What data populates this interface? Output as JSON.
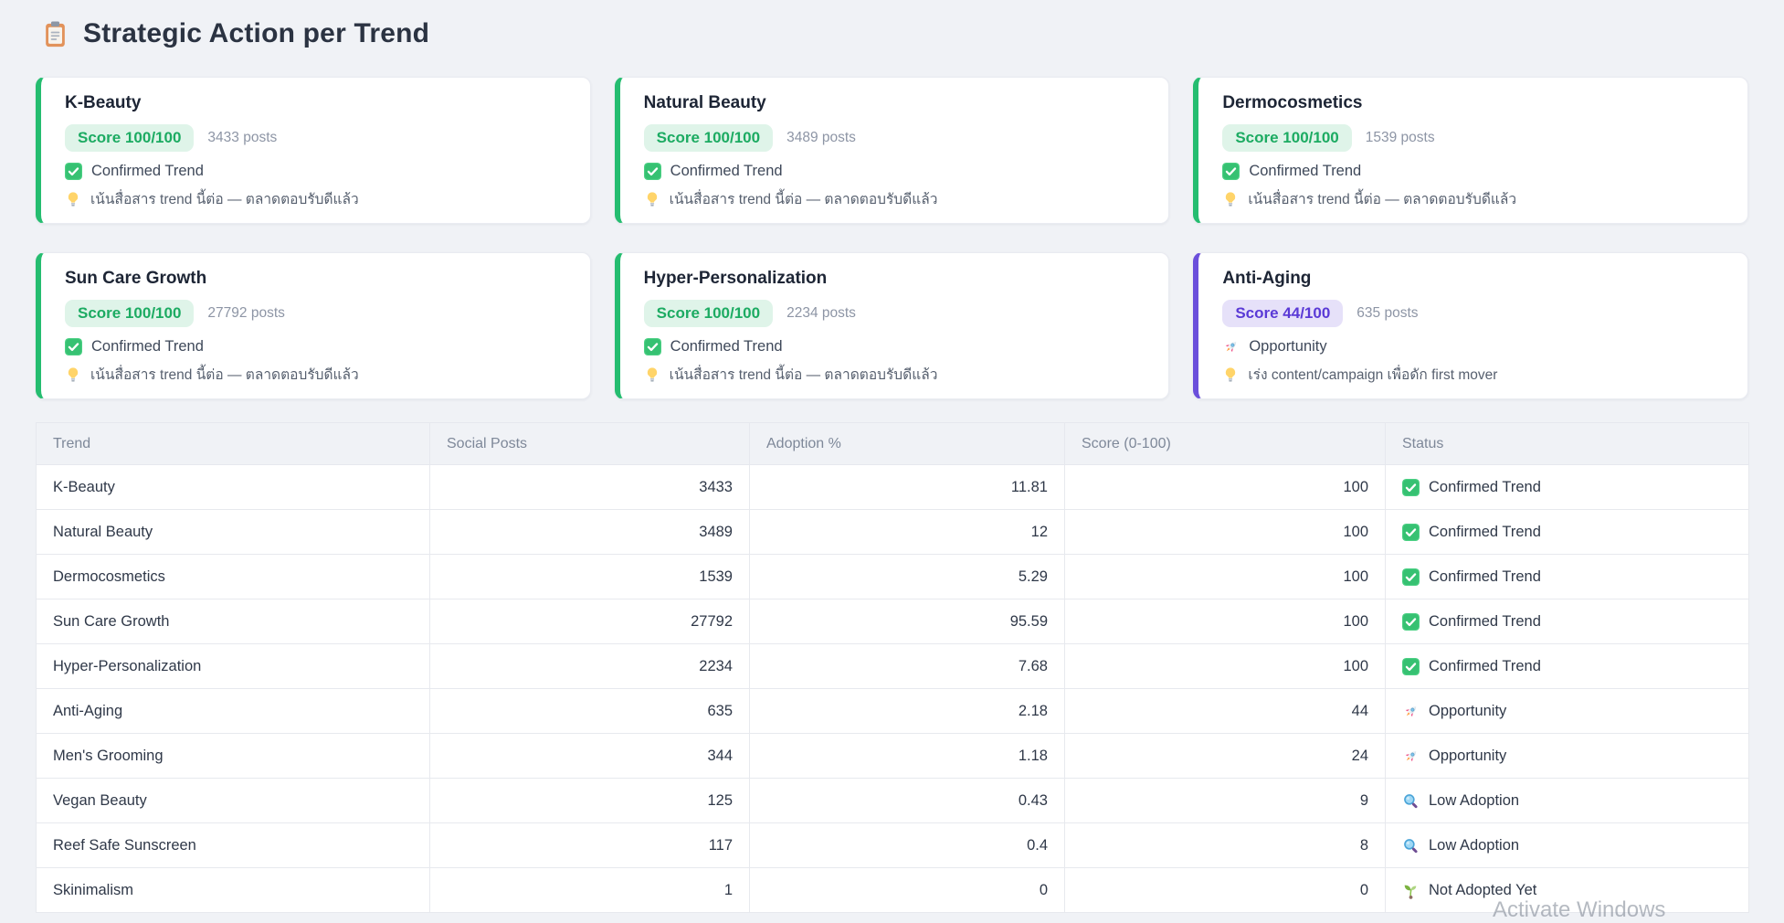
{
  "page": {
    "title": "Strategic Action per Trend",
    "title_icon": "clipboard",
    "watermark": "Activate Windows"
  },
  "colors": {
    "green": {
      "accent": "#25bd70",
      "badge_bg": "#dff4e9",
      "badge_text": "#1cab62"
    },
    "purple": {
      "accent": "#6b4fdb",
      "badge_bg": "#e6e1f9",
      "badge_text": "#5a3ad6"
    }
  },
  "cards": [
    {
      "name": "K-Beauty",
      "score_label": "Score 100/100",
      "posts_label": "3433 posts",
      "status_icon": "check",
      "status_label": "Confirmed Trend",
      "advice_icon": "bulb",
      "advice_label": "เน้นสื่อสาร trend นี้ต่อ — ตลาดตอบรับดีแล้ว",
      "accent": "green"
    },
    {
      "name": "Natural Beauty",
      "score_label": "Score 100/100",
      "posts_label": "3489 posts",
      "status_icon": "check",
      "status_label": "Confirmed Trend",
      "advice_icon": "bulb",
      "advice_label": "เน้นสื่อสาร trend นี้ต่อ — ตลาดตอบรับดีแล้ว",
      "accent": "green"
    },
    {
      "name": "Dermocosmetics",
      "score_label": "Score 100/100",
      "posts_label": "1539 posts",
      "status_icon": "check",
      "status_label": "Confirmed Trend",
      "advice_icon": "bulb",
      "advice_label": "เน้นสื่อสาร trend นี้ต่อ — ตลาดตอบรับดีแล้ว",
      "accent": "green"
    },
    {
      "name": "Sun Care Growth",
      "score_label": "Score 100/100",
      "posts_label": "27792 posts",
      "status_icon": "check",
      "status_label": "Confirmed Trend",
      "advice_icon": "bulb",
      "advice_label": "เน้นสื่อสาร trend นี้ต่อ — ตลาดตอบรับดีแล้ว",
      "accent": "green"
    },
    {
      "name": "Hyper-Personalization",
      "score_label": "Score 100/100",
      "posts_label": "2234 posts",
      "status_icon": "check",
      "status_label": "Confirmed Trend",
      "advice_icon": "bulb",
      "advice_label": "เน้นสื่อสาร trend นี้ต่อ — ตลาดตอบรับดีแล้ว",
      "accent": "green"
    },
    {
      "name": "Anti-Aging",
      "score_label": "Score 44/100",
      "posts_label": "635 posts",
      "status_icon": "rocket",
      "status_label": "Opportunity",
      "advice_icon": "bulb",
      "advice_label": "เร่ง content/campaign เพื่อดัก first mover",
      "accent": "purple"
    }
  ],
  "table": {
    "columns": [
      "Trend",
      "Social Posts",
      "Adoption %",
      "Score (0-100)",
      "Status"
    ],
    "rows": [
      {
        "trend": "K-Beauty",
        "posts": "3433",
        "adoption": "11.81",
        "score": "100",
        "status_icon": "check",
        "status_label": "Confirmed Trend"
      },
      {
        "trend": "Natural Beauty",
        "posts": "3489",
        "adoption": "12",
        "score": "100",
        "status_icon": "check",
        "status_label": "Confirmed Trend"
      },
      {
        "trend": "Dermocosmetics",
        "posts": "1539",
        "adoption": "5.29",
        "score": "100",
        "status_icon": "check",
        "status_label": "Confirmed Trend"
      },
      {
        "trend": "Sun Care Growth",
        "posts": "27792",
        "adoption": "95.59",
        "score": "100",
        "status_icon": "check",
        "status_label": "Confirmed Trend"
      },
      {
        "trend": "Hyper-Personalization",
        "posts": "2234",
        "adoption": "7.68",
        "score": "100",
        "status_icon": "check",
        "status_label": "Confirmed Trend"
      },
      {
        "trend": "Anti-Aging",
        "posts": "635",
        "adoption": "2.18",
        "score": "44",
        "status_icon": "rocket",
        "status_label": "Opportunity"
      },
      {
        "trend": "Men's Grooming",
        "posts": "344",
        "adoption": "1.18",
        "score": "24",
        "status_icon": "rocket",
        "status_label": "Opportunity"
      },
      {
        "trend": "Vegan Beauty",
        "posts": "125",
        "adoption": "0.43",
        "score": "9",
        "status_icon": "magnifier",
        "status_label": "Low Adoption"
      },
      {
        "trend": "Reef Safe Sunscreen",
        "posts": "117",
        "adoption": "0.4",
        "score": "8",
        "status_icon": "magnifier",
        "status_label": "Low Adoption"
      },
      {
        "trend": "Skinimalism",
        "posts": "1",
        "adoption": "0",
        "score": "0",
        "status_icon": "seedling",
        "status_label": "Not Adopted Yet"
      }
    ]
  }
}
